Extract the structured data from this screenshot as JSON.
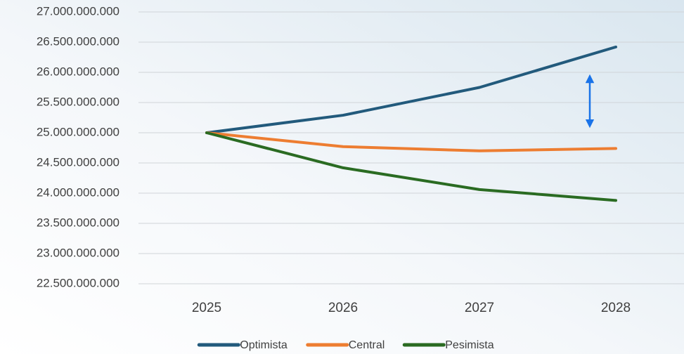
{
  "chart_data": {
    "type": "line",
    "categories": [
      "2025",
      "2026",
      "2027",
      "2028"
    ],
    "series": [
      {
        "name": "Optimista",
        "color": "#225a7c",
        "values": [
          25000000000,
          25290000000,
          25750000000,
          26420000000
        ]
      },
      {
        "name": "Central",
        "color": "#ed7d31",
        "values": [
          25000000000,
          24770000000,
          24700000000,
          24740000000
        ]
      },
      {
        "name": "Pesimista",
        "color": "#2a6b22",
        "values": [
          25000000000,
          24420000000,
          24060000000,
          23880000000
        ]
      }
    ],
    "ylim": [
      22500000000,
      27000000000
    ],
    "yticks": [
      {
        "value": 22500000000,
        "label": "22.500.000.000"
      },
      {
        "value": 23000000000,
        "label": "23.000.000.000"
      },
      {
        "value": 23500000000,
        "label": "23.500.000.000"
      },
      {
        "value": 24000000000,
        "label": "24.000.000.000"
      },
      {
        "value": 24500000000,
        "label": "24.500.000.000"
      },
      {
        "value": 25000000000,
        "label": "25.000.000.000"
      },
      {
        "value": 25500000000,
        "label": "25.500.000.000"
      },
      {
        "value": 26000000000,
        "label": "26.000.000.000"
      },
      {
        "value": 26500000000,
        "label": "26.500.000.000"
      },
      {
        "value": 27000000000,
        "label": "27.000.000.000"
      }
    ],
    "grid": true,
    "legend": "bottom"
  }
}
